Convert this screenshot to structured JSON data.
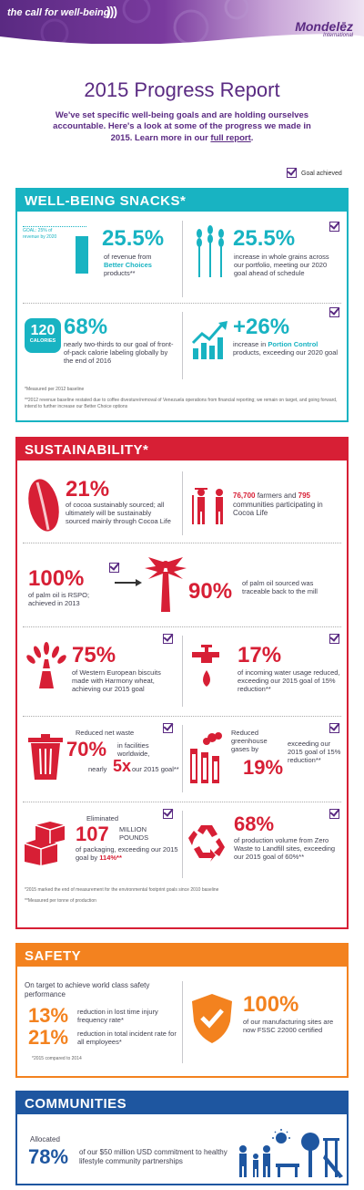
{
  "header": {
    "tagline": "the call for well-being",
    "brand": "Mondelēz",
    "brand_sub": "International"
  },
  "title": "2015 Progress Report",
  "intro": {
    "text": "We've set specific well-being goals and are holding ourselves accountable. Here's a look at some of the progress we made in 2015. Learn more in our",
    "link": "full report",
    "end": "."
  },
  "legend": {
    "label": "Goal achieved"
  },
  "snacks": {
    "title": "WELL-BEING SNACKS*",
    "goal_label": "GOAL: 25% of revenue by 2020",
    "goal_progress": 1.02,
    "s1": {
      "num": "25.5%",
      "t1": "of revenue from",
      "t2": "Better Choices",
      "t3": "products**"
    },
    "s2": {
      "num": "25.5%",
      "text": "increase in whole grains across our portfolio, meeting our 2020 goal ahead of schedule"
    },
    "s3": {
      "num": "68%",
      "badge_num": "120",
      "badge_label": "CALORIES",
      "text": "nearly two-thirds to our goal of front-of-pack calorie labeling globally by the end of 2016"
    },
    "s4": {
      "num": "+26%",
      "t1": "increase in",
      "t2": "Portion Control",
      "t3": "products, exceeding our 2020 goal"
    },
    "fn1": "*Measured per 2012 baseline",
    "fn2": "**2012 revenue baseline restated due to coffee divesture/removal of Venezuela operations from financial reporting; we remain on target, and going forward, intend to further increase our Better Choice options"
  },
  "sustain": {
    "title": "SUSTAINABILITY*",
    "cocoa": {
      "num": "21%",
      "text": "of cocoa sustainably sourced; all ultimately will be sustainably sourced mainly through Cocoa Life"
    },
    "farmers": {
      "n1": "76,700",
      "t1": "farmers and",
      "n2": "795",
      "t2": "communities participating in Cocoa Life"
    },
    "palm1": {
      "num": "100%",
      "text": "of palm oil is RSPO; achieved in 2013"
    },
    "palm2": {
      "num": "90%",
      "text": "of palm oil sourced was traceable back to the mill"
    },
    "wheat": {
      "num": "75%",
      "text": "of Western European biscuits made with Harmony wheat, achieving our 2015 goal"
    },
    "water": {
      "num": "17%",
      "text": "of incoming water usage reduced, exceeding our 2015 goal of 15% reduction**"
    },
    "waste": {
      "t1": "Reduced net waste",
      "num": "70%",
      "t2": "in facilities worldwide,",
      "t3": "nearly",
      "num2": "5x",
      "t4": "our 2015 goal**"
    },
    "ghg": {
      "t1": "Reduced greenhouse gases by",
      "num": "19%",
      "t2": "exceeding our 2015 goal of 15% reduction**"
    },
    "pack": {
      "t1": "Eliminated",
      "num": "107",
      "unit": "MILLION POUNDS",
      "t2": "of packaging, exceeding our 2015 goal by",
      "num2": "114%**"
    },
    "zero": {
      "num": "68%",
      "text": "of production volume from Zero Waste to Landfill sites, exceeding our 2015 goal of 60%**"
    },
    "fn1": "*2015 marked the end of measurement for the environmental footprint goals since 2010 baseline",
    "fn2": "**Measured per tonne of production"
  },
  "safety": {
    "title": "SAFETY",
    "intro": "On target to achieve world class safety performance",
    "r1": {
      "num": "13%",
      "text": "reduction in lost time injury frequency rate*"
    },
    "r2": {
      "num": "21%",
      "text": "reduction in total incident rate for all employees*"
    },
    "fn": "*2015 compared to 2014",
    "cert": {
      "num": "100%",
      "text": "of our manufacturing sites are now FSSC 22000 certified"
    }
  },
  "communities": {
    "title": "COMMUNITIES",
    "t1": "Allocated",
    "num": "78%",
    "text": "of our $50 million USD commitment to healthy lifestyle community partnerships"
  },
  "colors": {
    "purple": "#5a2a82",
    "teal": "#18b3c2",
    "red": "#d71f35",
    "orange": "#f3821f",
    "navy": "#1e56a0"
  }
}
